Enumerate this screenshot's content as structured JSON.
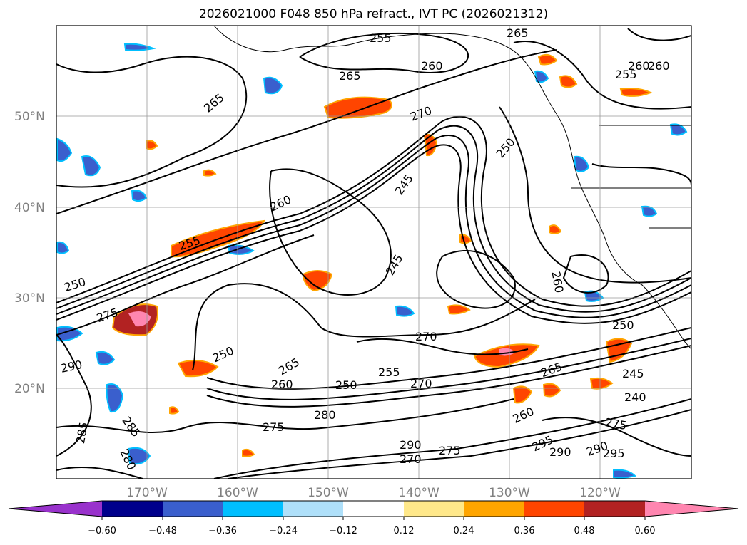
{
  "title": "2026021000 F048 850 hPa refract., IVT PC (2026021312)",
  "lat_labels": [
    "50°N",
    "40°N",
    "30°N",
    "20°N"
  ],
  "lon_labels": [
    "170°W",
    "160°W",
    "150°W",
    "140°W",
    "130°W",
    "120°W"
  ],
  "colorbar": {
    "colors": [
      "#9932cc",
      "#00008b",
      "#3a5fcd",
      "#00bfff",
      "#afe0fa",
      "#ffffff",
      "#ffe88a",
      "#ffa500",
      "#ff4500",
      "#b22222",
      "#ff86b0"
    ],
    "tick_labels": [
      "−0.60",
      "−0.48",
      "−0.36",
      "−0.24",
      "−0.12",
      "0.12",
      "0.24",
      "0.36",
      "0.48",
      "0.60"
    ]
  },
  "contour_labels": [
    "255",
    "265",
    "260",
    "265",
    "265",
    "260",
    "270",
    "250",
    "245",
    "255",
    "260",
    "255",
    "260",
    "250",
    "245",
    "275",
    "270",
    "290",
    "250",
    "265",
    "255",
    "260",
    "250",
    "270",
    "280",
    "275",
    "285",
    "285",
    "290",
    "270",
    "275",
    "290",
    "295",
    "290",
    "295",
    "260",
    "265",
    "245",
    "240",
    "250",
    "260",
    "275",
    "280"
  ]
}
